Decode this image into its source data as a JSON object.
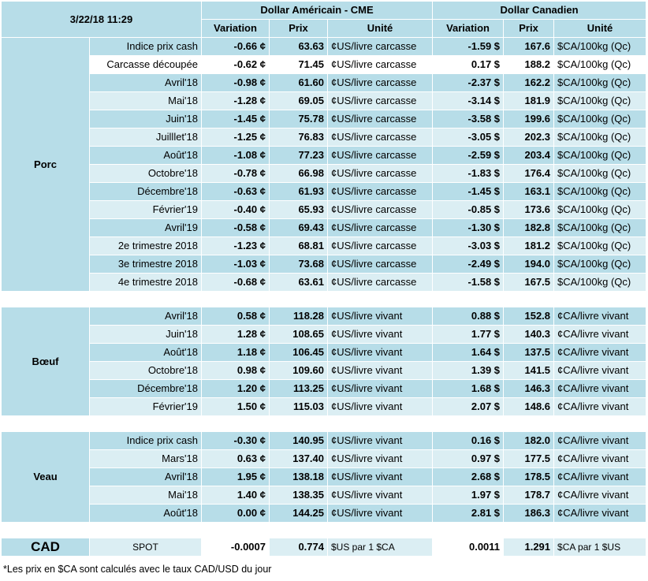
{
  "header": {
    "timestamp": "3/22/18 11:29",
    "usd_title": "Dollar Américain - CME",
    "cad_title": "Dollar Canadien",
    "col_variation": "Variation",
    "col_prix": "Prix",
    "col_unite": "Unité"
  },
  "sections": {
    "porc": "Porc",
    "boeuf": "Bœuf",
    "veau": "Veau",
    "cad": "CAD"
  },
  "porc_rows": [
    {
      "label": "Indice prix cash",
      "uvar": "-0.66 ¢",
      "uprix": "63.63",
      "uunit": "¢US/livre carcasse",
      "cvar": "-1.59 $",
      "cprix": "167.6",
      "cunit": "$CA/100kg (Qc)"
    },
    {
      "label": "Carcasse découpée",
      "uvar": "-0.62 ¢",
      "uprix": "71.45",
      "uunit": "¢US/livre carcasse",
      "cvar": "0.17 $",
      "cprix": "188.2",
      "cunit": "$CA/100kg (Qc)"
    },
    {
      "label": "Avril'18",
      "uvar": "-0.98 ¢",
      "uprix": "61.60",
      "uunit": "¢US/livre carcasse",
      "cvar": "-2.37 $",
      "cprix": "162.2",
      "cunit": "$CA/100kg (Qc)"
    },
    {
      "label": "Mai'18",
      "uvar": "-1.28 ¢",
      "uprix": "69.05",
      "uunit": "¢US/livre carcasse",
      "cvar": "-3.14 $",
      "cprix": "181.9",
      "cunit": "$CA/100kg (Qc)"
    },
    {
      "label": "Juin'18",
      "uvar": "-1.45 ¢",
      "uprix": "75.78",
      "uunit": "¢US/livre carcasse",
      "cvar": "-3.58 $",
      "cprix": "199.6",
      "cunit": "$CA/100kg (Qc)"
    },
    {
      "label": "Juilllet'18",
      "uvar": "-1.25 ¢",
      "uprix": "76.83",
      "uunit": "¢US/livre carcasse",
      "cvar": "-3.05 $",
      "cprix": "202.3",
      "cunit": "$CA/100kg (Qc)"
    },
    {
      "label": "Août'18",
      "uvar": "-1.08 ¢",
      "uprix": "77.23",
      "uunit": "¢US/livre carcasse",
      "cvar": "-2.59 $",
      "cprix": "203.4",
      "cunit": "$CA/100kg (Qc)"
    },
    {
      "label": "Octobre'18",
      "uvar": "-0.78 ¢",
      "uprix": "66.98",
      "uunit": "¢US/livre carcasse",
      "cvar": "-1.83 $",
      "cprix": "176.4",
      "cunit": "$CA/100kg (Qc)"
    },
    {
      "label": "Décembre'18",
      "uvar": "-0.63 ¢",
      "uprix": "61.93",
      "uunit": "¢US/livre carcasse",
      "cvar": "-1.45 $",
      "cprix": "163.1",
      "cunit": "$CA/100kg (Qc)"
    },
    {
      "label": "Février'19",
      "uvar": "-0.40 ¢",
      "uprix": "65.93",
      "uunit": "¢US/livre carcasse",
      "cvar": "-0.85 $",
      "cprix": "173.6",
      "cunit": "$CA/100kg (Qc)"
    },
    {
      "label": "Avril'19",
      "uvar": "-0.58 ¢",
      "uprix": "69.43",
      "uunit": "¢US/livre carcasse",
      "cvar": "-1.30 $",
      "cprix": "182.8",
      "cunit": "$CA/100kg (Qc)"
    },
    {
      "label": "2e trimestre 2018",
      "uvar": "-1.23 ¢",
      "uprix": "68.81",
      "uunit": "¢US/livre carcasse",
      "cvar": "-3.03 $",
      "cprix": "181.2",
      "cunit": "$CA/100kg (Qc)"
    },
    {
      "label": "3e trimestre 2018",
      "uvar": "-1.03 ¢",
      "uprix": "73.68",
      "uunit": "¢US/livre carcasse",
      "cvar": "-2.49 $",
      "cprix": "194.0",
      "cunit": "$CA/100kg (Qc)"
    },
    {
      "label": "4e trimestre 2018",
      "uvar": "-0.68 ¢",
      "uprix": "63.61",
      "uunit": "¢US/livre carcasse",
      "cvar": "-1.58 $",
      "cprix": "167.5",
      "cunit": "$CA/100kg (Qc)"
    }
  ],
  "boeuf_rows": [
    {
      "label": "Avril'18",
      "uvar": "0.58 ¢",
      "uprix": "118.28",
      "uunit": "¢US/livre vivant",
      "cvar": "0.88 $",
      "cprix": "152.8",
      "cunit": "¢CA/livre vivant"
    },
    {
      "label": "Juin'18",
      "uvar": "1.28 ¢",
      "uprix": "108.65",
      "uunit": "¢US/livre vivant",
      "cvar": "1.77 $",
      "cprix": "140.3",
      "cunit": "¢CA/livre vivant"
    },
    {
      "label": "Août'18",
      "uvar": "1.18 ¢",
      "uprix": "106.45",
      "uunit": "¢US/livre vivant",
      "cvar": "1.64 $",
      "cprix": "137.5",
      "cunit": "¢CA/livre vivant"
    },
    {
      "label": "Octobre'18",
      "uvar": "0.98 ¢",
      "uprix": "109.60",
      "uunit": "¢US/livre vivant",
      "cvar": "1.39 $",
      "cprix": "141.5",
      "cunit": "¢CA/livre vivant"
    },
    {
      "label": "Décembre'18",
      "uvar": "1.20 ¢",
      "uprix": "113.25",
      "uunit": "¢US/livre vivant",
      "cvar": "1.68 $",
      "cprix": "146.3",
      "cunit": "¢CA/livre vivant"
    },
    {
      "label": "Février'19",
      "uvar": "1.50 ¢",
      "uprix": "115.03",
      "uunit": "¢US/livre vivant",
      "cvar": "2.07 $",
      "cprix": "148.6",
      "cunit": "¢CA/livre vivant"
    }
  ],
  "veau_rows": [
    {
      "label": "Indice prix cash",
      "uvar": "-0.30 ¢",
      "uprix": "140.95",
      "uunit": "¢US/livre vivant",
      "cvar": "0.16 $",
      "cprix": "182.0",
      "cunit": "¢CA/livre vivant"
    },
    {
      "label": "Mars'18",
      "uvar": "0.63 ¢",
      "uprix": "137.40",
      "uunit": "¢US/livre vivant",
      "cvar": "0.97 $",
      "cprix": "177.5",
      "cunit": "¢CA/livre vivant"
    },
    {
      "label": "Avril'18",
      "uvar": "1.95 ¢",
      "uprix": "138.18",
      "uunit": "¢US/livre vivant",
      "cvar": "2.68 $",
      "cprix": "178.5",
      "cunit": "¢CA/livre vivant"
    },
    {
      "label": "Mai'18",
      "uvar": "1.40 ¢",
      "uprix": "138.35",
      "uunit": "¢US/livre vivant",
      "cvar": "1.97 $",
      "cprix": "178.7",
      "cunit": "¢CA/livre vivant"
    },
    {
      "label": "Août'18",
      "uvar": "0.00 ¢",
      "uprix": "144.25",
      "uunit": "¢US/livre vivant",
      "cvar": "2.81 $",
      "cprix": "186.3",
      "cunit": "¢CA/livre vivant"
    }
  ],
  "cad_row": {
    "label": "SPOT",
    "uvar": "-0.0007",
    "uprix": "0.774",
    "uunit": "$US par 1 $CA",
    "cvar": "0.0011",
    "cprix": "1.291",
    "cunit": "$CA par 1 $US"
  },
  "footnote": "*Les  prix en $CA sont calculés avec le taux CAD/USD du jour",
  "colors": {
    "header_bg": "#b7dde8",
    "row_light": "#dbeef3",
    "row_dark": "#b7dde8",
    "negative": "#e41b17",
    "positive": "#1a9b2f"
  }
}
